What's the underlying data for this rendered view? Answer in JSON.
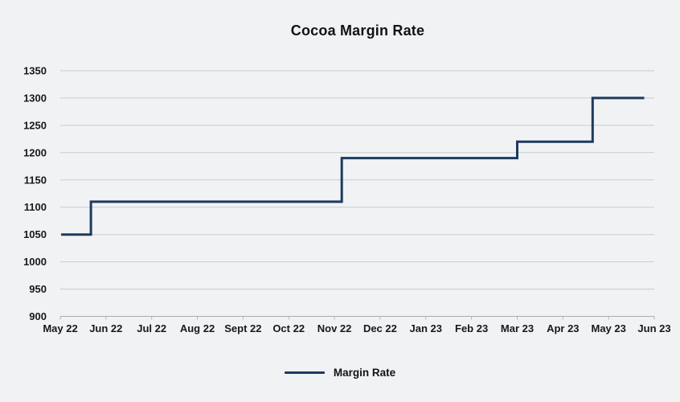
{
  "page": {
    "background": "#f0f2f4"
  },
  "chart_data": {
    "type": "line",
    "subtype": "step",
    "title": "Cocoa Margin Rate",
    "xlabel": "",
    "ylabel": "",
    "ylim": [
      900,
      1350
    ],
    "y_ticks": [
      900,
      950,
      1000,
      1050,
      1100,
      1150,
      1200,
      1250,
      1300,
      1350
    ],
    "x_tick_labels": [
      "May 22",
      "Jun 22",
      "Jul 22",
      "Aug 22",
      "Sept 22",
      "Oct 22",
      "Nov 22",
      "Dec 22",
      "Jan 23",
      "Feb 23",
      "Mar 23",
      "Apr 23",
      "May 23",
      "Jun 23"
    ],
    "grid": "horizontal-only",
    "legend_position": "bottom-center",
    "series": [
      {
        "name": "Margin Rate",
        "color": "#1e3a5e",
        "steps": [
          {
            "approx_date": "early May 22",
            "x_months_from_may22": 0.02,
            "value": 1050
          },
          {
            "approx_date": "late May 22",
            "x_months_from_may22": 0.67,
            "value": 1110
          },
          {
            "approx_date": "early Nov 22",
            "x_months_from_may22": 6.16,
            "value": 1190
          },
          {
            "approx_date": "Mar 23",
            "x_months_from_may22": 10.0,
            "value": 1220
          },
          {
            "approx_date": "late Apr 23",
            "x_months_from_may22": 11.65,
            "value": 1300
          },
          {
            "approx_date": "late May 23",
            "x_months_from_may22": 12.78,
            "value": 1300
          }
        ]
      }
    ],
    "colors": {
      "grid": "#c9cbcd",
      "axis": "#a8aaac",
      "tick": "#b2b4b6",
      "text": "#17181b",
      "title": "#121316"
    }
  }
}
